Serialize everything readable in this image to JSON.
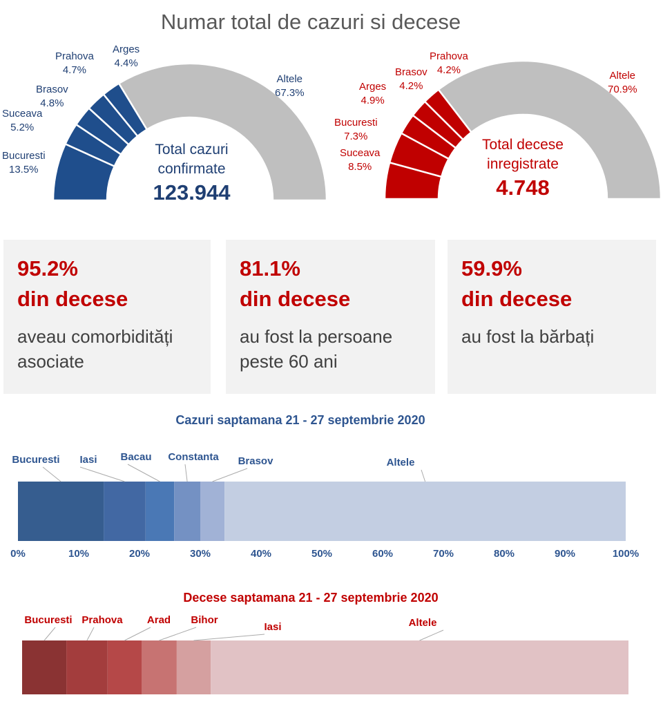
{
  "title": "Numar total de cazuri si decese",
  "chart_data": [
    {
      "type": "pie",
      "variant": "semi-donut",
      "color": "#1f4e8c",
      "other_color": "#bfbfbf",
      "center_label": "Total cazuri confirmate",
      "center_line1": "Total cazuri",
      "center_line2": "confirmate",
      "total": "123.944",
      "slices": [
        {
          "label": "Bucuresti",
          "value": 13.5,
          "text": "13.5%"
        },
        {
          "label": "Suceava",
          "value": 5.2,
          "text": "5.2%"
        },
        {
          "label": "Brasov",
          "value": 4.8,
          "text": "4.8%"
        },
        {
          "label": "Prahova",
          "value": 4.7,
          "text": "4.7%"
        },
        {
          "label": "Arges",
          "value": 4.4,
          "text": "4.4%"
        },
        {
          "label": "Altele",
          "value": 67.3,
          "text": "67.3%"
        }
      ]
    },
    {
      "type": "pie",
      "variant": "semi-donut",
      "color": "#c00000",
      "other_color": "#bfbfbf",
      "center_line1": "Total decese",
      "center_line2": "inregistrate",
      "total": "4.748",
      "slices": [
        {
          "label": "Suceava",
          "value": 8.5,
          "text": "8.5%"
        },
        {
          "label": "Bucuresti",
          "value": 7.3,
          "text": "7.3%"
        },
        {
          "label": "Arges",
          "value": 4.9,
          "text": "4.9%"
        },
        {
          "label": "Brasov",
          "value": 4.2,
          "text": "4.2%"
        },
        {
          "label": "Prahova",
          "value": 4.2,
          "text": "4.2%"
        },
        {
          "label": "Altele",
          "value": 70.9,
          "text": "70.9%"
        }
      ]
    },
    {
      "type": "bar",
      "variant": "100% stacked horizontal",
      "title": "Cazuri saptamana 21 - 27 septembrie 2020",
      "xlim": [
        0,
        100
      ],
      "ticks": [
        "0%",
        "10%",
        "20%",
        "30%",
        "40%",
        "50%",
        "60%",
        "70%",
        "80%",
        "90%",
        "100%"
      ],
      "series": [
        {
          "name": "Bucuresti",
          "value": 14.1,
          "color": "#365d8f"
        },
        {
          "name": "Iasi",
          "value": 6.9,
          "color": "#4268a3"
        },
        {
          "name": "Bacau",
          "value": 4.7,
          "color": "#4a78b5"
        },
        {
          "name": "Constanta",
          "value": 4.3,
          "color": "#7491c3"
        },
        {
          "name": "Brasov",
          "value": 4.0,
          "color": "#a1b2d6"
        },
        {
          "name": "Altele",
          "value": 66.0,
          "color": "#c3cee2"
        }
      ]
    },
    {
      "type": "bar",
      "variant": "100% stacked horizontal",
      "title": "Decese saptamana 21 - 27 septembrie 2020",
      "xlim": [
        0,
        100
      ],
      "ticks": [
        "0%",
        "10%",
        "20%",
        "30%",
        "40%",
        "50%",
        "60%",
        "70%",
        "80%",
        "90%",
        "100%"
      ],
      "series": [
        {
          "name": "Bucuresti",
          "value": 7.3,
          "color": "#8a3333"
        },
        {
          "name": "Prahova",
          "value": 6.8,
          "color": "#a33d3d"
        },
        {
          "name": "Arad",
          "value": 5.6,
          "color": "#b54848"
        },
        {
          "name": "Bihor",
          "value": 5.8,
          "color": "#c77372"
        },
        {
          "name": "Iasi",
          "value": 5.6,
          "color": "#d5a0a0"
        },
        {
          "name": "Altele",
          "value": 68.9,
          "color": "#e1c2c5"
        }
      ]
    }
  ],
  "cards": [
    {
      "pct": "95.2%",
      "sub": "din decese",
      "desc": "aveau comorbidități asociate"
    },
    {
      "pct": "81.1%",
      "sub": "din decese",
      "desc": "au fost la persoane peste 60 ani"
    },
    {
      "pct": "59.9%",
      "sub": "din decese",
      "desc": "au fost la bărbați"
    }
  ]
}
